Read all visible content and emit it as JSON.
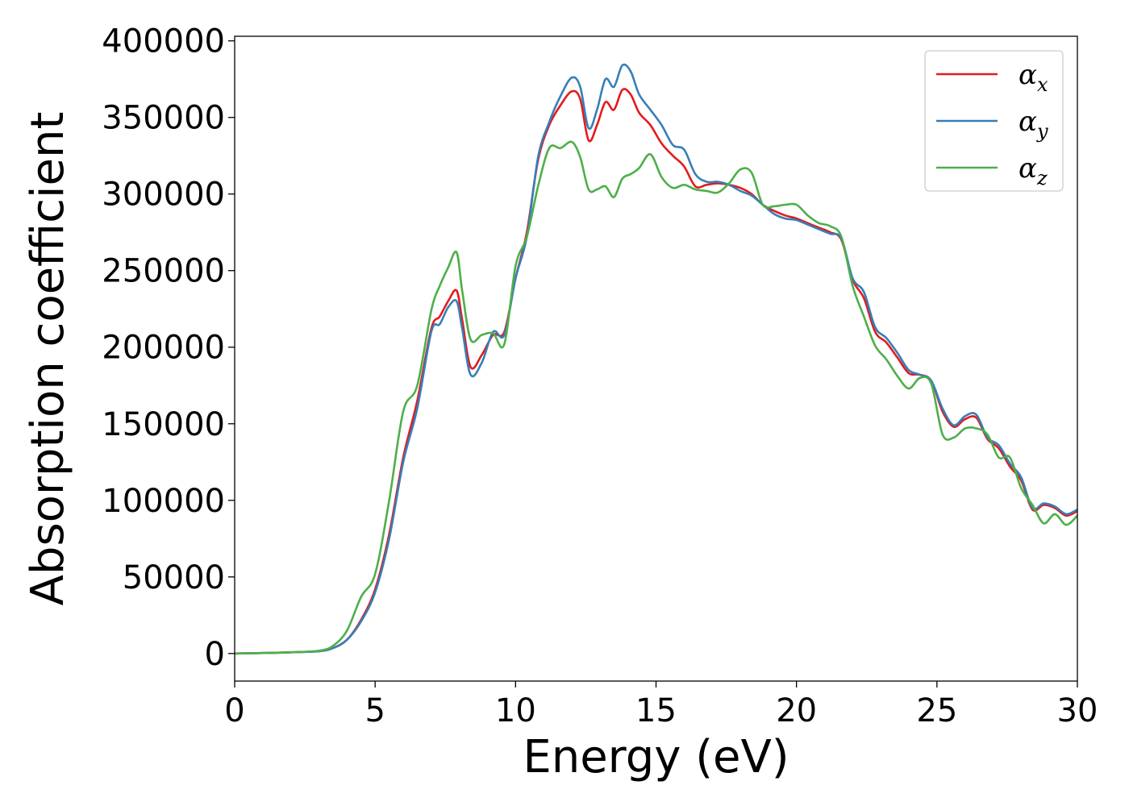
{
  "chart_data": {
    "type": "line",
    "title": "",
    "xlabel": "Energy (eV)",
    "ylabel": "Absorption coefficient",
    "xlim": [
      0,
      30
    ],
    "ylim": [
      -18000,
      403000
    ],
    "xticks": [
      0,
      5,
      10,
      15,
      20,
      25,
      30
    ],
    "yticks": [
      0,
      50000,
      100000,
      150000,
      200000,
      250000,
      300000,
      350000,
      400000
    ],
    "grid": false,
    "legend_position": "top-right",
    "series": [
      {
        "name": "α_x",
        "legend_base": "α",
        "legend_sub": "x",
        "color": "#e41a1c",
        "x": [
          0,
          1,
          2,
          3,
          3.5,
          4,
          4.5,
          5,
          5.5,
          6,
          6.5,
          7,
          7.3,
          7.6,
          7.9,
          8.1,
          8.4,
          8.8,
          9.2,
          9.6,
          10,
          10.4,
          10.8,
          11.2,
          11.6,
          12,
          12.3,
          12.6,
          12.9,
          13.2,
          13.5,
          13.8,
          14.1,
          14.4,
          14.8,
          15.2,
          15.6,
          16,
          16.4,
          16.8,
          17.2,
          17.6,
          18,
          18.4,
          18.8,
          19.2,
          19.6,
          20,
          20.4,
          20.8,
          21.2,
          21.6,
          22,
          22.4,
          22.8,
          23.2,
          23.6,
          24,
          24.4,
          24.8,
          25.2,
          25.6,
          26,
          26.4,
          26.8,
          27.2,
          27.6,
          28,
          28.4,
          28.8,
          29.2,
          29.6,
          30
        ],
        "y": [
          0,
          300,
          800,
          1500,
          3500,
          9000,
          22000,
          42000,
          78000,
          128000,
          165000,
          212000,
          220000,
          230000,
          237000,
          218000,
          187000,
          195000,
          208000,
          210000,
          245000,
          275000,
          322000,
          345000,
          358000,
          367000,
          362000,
          335000,
          345000,
          360000,
          355000,
          368000,
          365000,
          353000,
          345000,
          333000,
          325000,
          318000,
          305000,
          306000,
          307000,
          306000,
          304000,
          300000,
          293000,
          289000,
          286000,
          284000,
          281000,
          278000,
          275000,
          270000,
          244000,
          232000,
          210000,
          203000,
          193000,
          183000,
          182000,
          178000,
          158000,
          148000,
          153000,
          154000,
          140000,
          134000,
          122000,
          113000,
          94000,
          97000,
          95000,
          90000,
          93000
        ]
      },
      {
        "name": "α_y",
        "legend_base": "α",
        "legend_sub": "y",
        "color": "#377eb8",
        "x": [
          0,
          1,
          2,
          3,
          3.5,
          4,
          4.5,
          5,
          5.5,
          6,
          6.5,
          7,
          7.3,
          7.6,
          7.9,
          8.1,
          8.4,
          8.8,
          9.2,
          9.6,
          10,
          10.4,
          10.8,
          11.2,
          11.6,
          12,
          12.3,
          12.6,
          12.9,
          13.2,
          13.5,
          13.8,
          14.1,
          14.4,
          14.8,
          15.2,
          15.6,
          16,
          16.4,
          16.8,
          17.2,
          17.6,
          18,
          18.4,
          18.8,
          19.2,
          19.6,
          20,
          20.4,
          20.8,
          21.2,
          21.6,
          22,
          22.4,
          22.8,
          23.2,
          23.6,
          24,
          24.4,
          24.8,
          25.2,
          25.6,
          26,
          26.4,
          26.8,
          27.2,
          27.6,
          28,
          28.4,
          28.8,
          29.2,
          29.6,
          30
        ],
        "y": [
          0,
          300,
          800,
          1500,
          3500,
          9000,
          21000,
          40000,
          75000,
          125000,
          160000,
          210000,
          215000,
          226000,
          230000,
          212000,
          182000,
          190000,
          210000,
          208000,
          245000,
          272000,
          324000,
          347000,
          364000,
          376000,
          370000,
          343000,
          355000,
          375000,
          370000,
          384000,
          380000,
          365000,
          355000,
          345000,
          332000,
          329000,
          313000,
          308000,
          308000,
          306000,
          302000,
          299000,
          293000,
          287000,
          284000,
          283000,
          280000,
          277000,
          274000,
          271000,
          245000,
          236000,
          213000,
          206000,
          196000,
          185000,
          182000,
          178000,
          160000,
          149000,
          155000,
          156000,
          141000,
          136000,
          124000,
          115000,
          95000,
          98000,
          96000,
          91000,
          94000
        ]
      },
      {
        "name": "α_z",
        "legend_base": "α",
        "legend_sub": "z",
        "color": "#4daf4a",
        "x": [
          0,
          1,
          2,
          3,
          3.5,
          4,
          4.5,
          5,
          5.5,
          6,
          6.5,
          7,
          7.3,
          7.6,
          7.9,
          8.1,
          8.4,
          8.8,
          9.2,
          9.6,
          10,
          10.4,
          10.8,
          11.2,
          11.6,
          12,
          12.3,
          12.6,
          12.9,
          13.2,
          13.5,
          13.8,
          14.1,
          14.4,
          14.8,
          15.2,
          15.6,
          16,
          16.4,
          16.8,
          17.2,
          17.6,
          18,
          18.4,
          18.8,
          19.2,
          19.6,
          20,
          20.4,
          20.8,
          21.2,
          21.6,
          22,
          22.4,
          22.8,
          23.2,
          23.6,
          24,
          24.4,
          24.8,
          25.2,
          25.6,
          26,
          26.4,
          26.8,
          27.2,
          27.6,
          28,
          28.4,
          28.8,
          29.2,
          29.6,
          30
        ],
        "y": [
          0,
          300,
          800,
          1800,
          5000,
          15000,
          37000,
          52000,
          100000,
          158000,
          175000,
          224000,
          240000,
          252000,
          262000,
          237000,
          205000,
          208000,
          209000,
          202000,
          253000,
          272000,
          305000,
          330000,
          330000,
          334000,
          324000,
          303000,
          303000,
          305000,
          298000,
          310000,
          313000,
          317000,
          326000,
          311000,
          304000,
          306000,
          303000,
          302000,
          301000,
          307000,
          316000,
          314000,
          293000,
          292000,
          293000,
          293000,
          286000,
          281000,
          279000,
          272000,
          240000,
          220000,
          201000,
          192000,
          181000,
          173000,
          180000,
          176000,
          143000,
          141000,
          147000,
          147000,
          143000,
          128000,
          128000,
          108000,
          97000,
          85000,
          91000,
          84000,
          90000
        ]
      }
    ]
  }
}
